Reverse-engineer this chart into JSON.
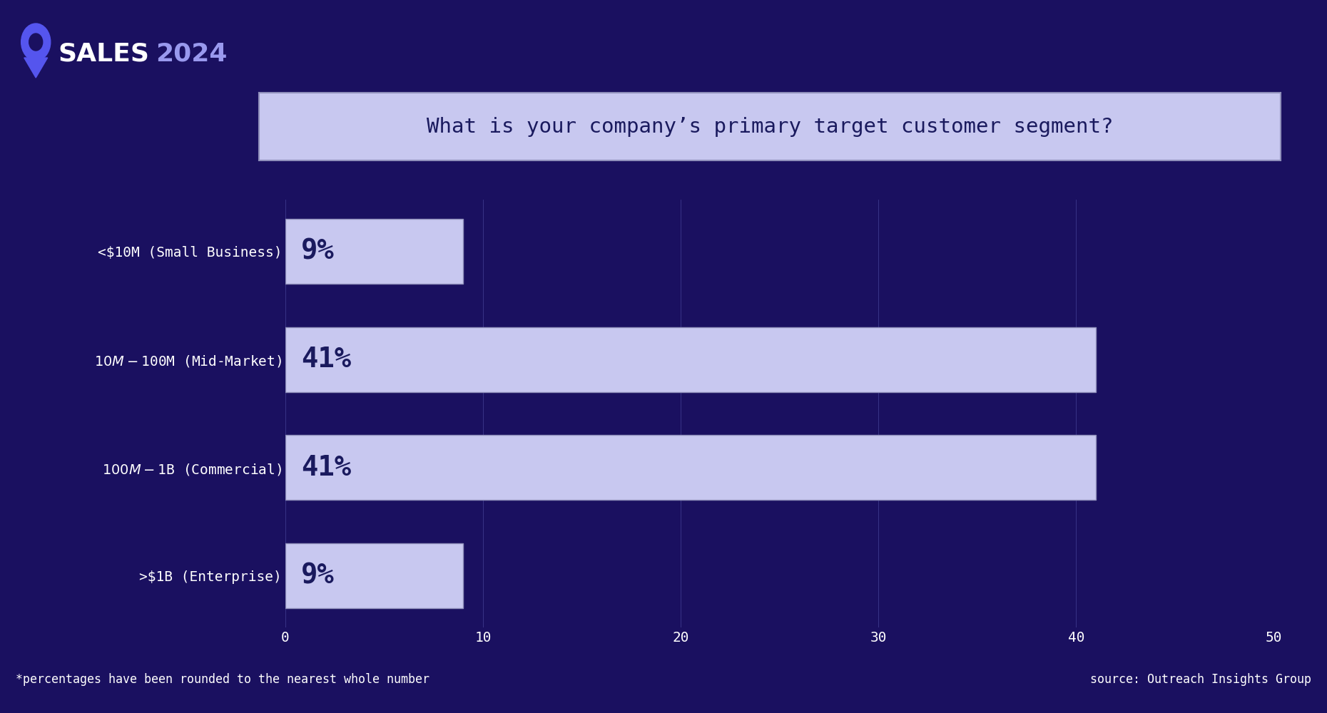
{
  "title": "What is your company’s primary target customer segment?",
  "categories": [
    "<$10M (Small Business)",
    "$10M - $100M (Mid-Market)",
    "$100M - $1B (Commercial)",
    ">$1B (Enterprise)"
  ],
  "values": [
    9,
    41,
    41,
    9
  ],
  "bar_labels": [
    "9%",
    "41%",
    "41%",
    "9%"
  ],
  "bar_color": "#c8c8f0",
  "bar_edge_color": "#9090bb",
  "text_color": "#ffffff",
  "bar_label_color": "#1a1a5e",
  "bg_color": "#1a1060",
  "title_bg_color": "#c8c8f0",
  "title_text_color": "#1a1a5e",
  "xlim": [
    0,
    50
  ],
  "xticks": [
    0,
    10,
    20,
    30,
    40,
    50
  ],
  "footnote": "*percentages have been rounded to the nearest whole number",
  "source": "source: Outreach Insights Group",
  "ylabel_fontsize": 14,
  "bar_label_fontsize": 28,
  "title_fontsize": 21,
  "tick_fontsize": 14,
  "footnote_fontsize": 12
}
